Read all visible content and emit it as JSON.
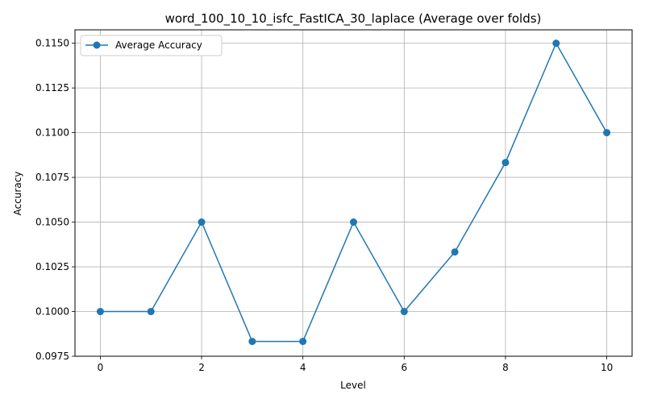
{
  "chart_data": {
    "type": "line",
    "title": "word_100_10_10_isfc_FastICA_30_laplace (Average over folds)",
    "xlabel": "Level",
    "ylabel": "Accuracy",
    "xlim": [
      -0.5,
      10.5
    ],
    "ylim": [
      0.0975,
      0.11575
    ],
    "xticks": [
      0,
      2,
      4,
      6,
      8,
      10
    ],
    "xtick_labels": [
      "0",
      "2",
      "4",
      "6",
      "8",
      "10"
    ],
    "yticks": [
      0.0975,
      0.1,
      0.1025,
      0.105,
      0.1075,
      0.11,
      0.1125,
      0.115
    ],
    "ytick_labels": [
      "0.0975",
      "0.1000",
      "0.1025",
      "0.1050",
      "0.1075",
      "0.1100",
      "0.1125",
      "0.1150"
    ],
    "grid": true,
    "legend_position": "top-left",
    "x": [
      0,
      1,
      2,
      3,
      4,
      5,
      6,
      7,
      8,
      9,
      10
    ],
    "series": [
      {
        "name": "Average Accuracy",
        "color": "#1f77b4",
        "marker": "circle",
        "values": [
          0.1,
          0.1,
          0.105,
          0.09833,
          0.09833,
          0.105,
          0.1,
          0.10333,
          0.10833,
          0.115,
          0.11
        ]
      }
    ]
  }
}
